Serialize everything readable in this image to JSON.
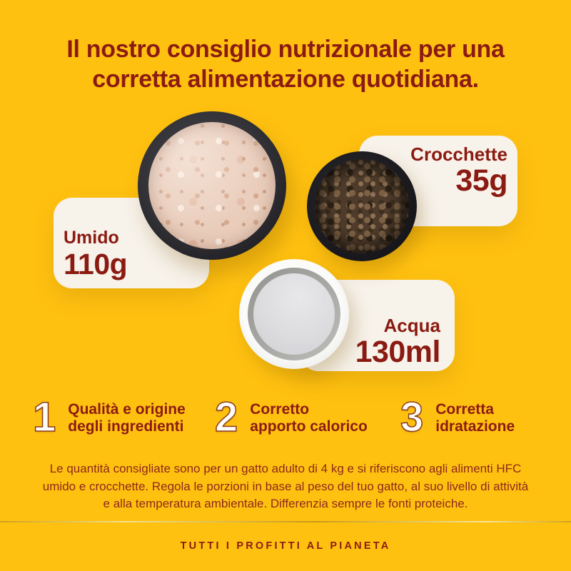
{
  "colors": {
    "background": "#FFC110",
    "text_dark_red": "#8B1B12",
    "card_cream": "#F7F2EA",
    "number_outline": "#8A3C20"
  },
  "title": {
    "line1": "Il nostro consiglio nutrizionale per una",
    "line2": "corretta alimentazione quotidiana."
  },
  "portions": [
    {
      "id": "umido",
      "label": "Umido",
      "amount": "110g"
    },
    {
      "id": "crocchette",
      "label": "Crocchette",
      "amount": "35g"
    },
    {
      "id": "acqua",
      "label": "Acqua",
      "amount": "130ml"
    }
  ],
  "bowls": [
    {
      "id": "wet-food-bowl",
      "description": "black bowl with wet shredded food"
    },
    {
      "id": "kibble-bowl",
      "description": "black bowl with dry kibble"
    },
    {
      "id": "water-bowl",
      "description": "white bowl with water"
    }
  ],
  "principles": [
    {
      "number": "1",
      "line1": "Qualità e origine",
      "line2": "degli ingredienti"
    },
    {
      "number": "2",
      "line1": "Corretto",
      "line2": "apporto calorico"
    },
    {
      "number": "3",
      "line1": "Corretta",
      "line2": "idratazione"
    }
  ],
  "disclaimer": {
    "lines": [
      "Le quantità consigliate sono per un gatto adulto di 4 kg e si riferiscono agli alimenti HFC",
      "umido e crocchette. Regola le porzioni in base al peso del tuo gatto, al suo livello di attività",
      "e alla temperatura ambientale. Differenzia sempre le fonti proteiche."
    ]
  },
  "footer": {
    "tagline": "TUTTI I PROFITTI AL PIANETA"
  }
}
